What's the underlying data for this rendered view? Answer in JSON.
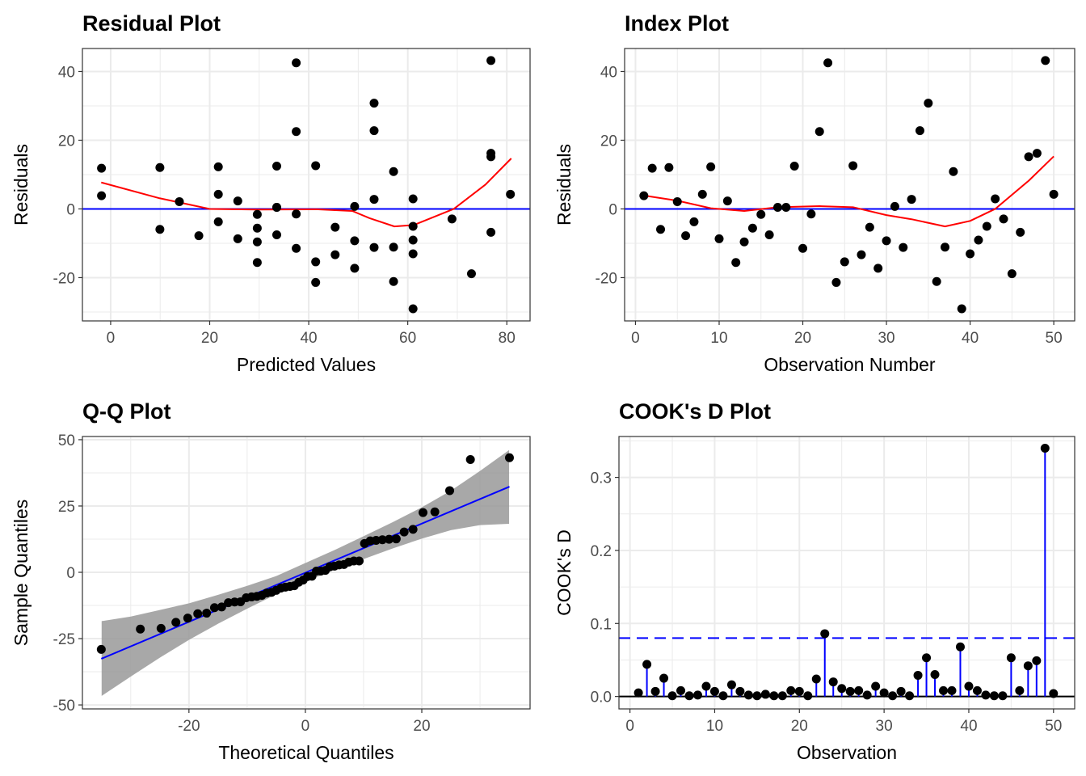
{
  "chart_data": [
    {
      "type": "scatter",
      "title": "Residual Plot",
      "xlabel": "Predicted Values",
      "ylabel": "Residuals",
      "xlim": [
        -5.7,
        84.7
      ],
      "ylim": [
        -32.6,
        46.7
      ],
      "xticks": [
        0,
        20,
        40,
        60,
        80
      ],
      "yticks": [
        -20,
        0,
        20,
        40
      ],
      "grid": true,
      "point_color": "#000000",
      "reference_line": {
        "y": 0,
        "color": "#0000ff"
      },
      "x": [
        -1.849,
        -1.849,
        9.947,
        9.947,
        13.88,
        17.812,
        21.744,
        21.744,
        21.744,
        25.677,
        25.677,
        29.609,
        29.609,
        29.609,
        29.609,
        33.541,
        33.541,
        33.541,
        33.541,
        37.474,
        37.474,
        37.474,
        37.474,
        41.406,
        41.406,
        41.406,
        45.338,
        45.338,
        49.271,
        49.271,
        49.271,
        53.203,
        53.203,
        53.203,
        53.203,
        57.135,
        57.135,
        57.135,
        61.068,
        61.068,
        61.068,
        61.068,
        61.068,
        68.932,
        72.865,
        76.797,
        76.797,
        76.797,
        76.797,
        80.73
      ],
      "y": [
        3.849,
        11.849,
        -5.947,
        12.053,
        2.12,
        -7.812,
        -3.744,
        4.256,
        12.256,
        -8.677,
        2.323,
        -15.609,
        -9.609,
        -5.609,
        -1.609,
        -7.541,
        0.459,
        0.459,
        12.459,
        -11.474,
        -1.474,
        22.526,
        42.526,
        -21.406,
        -15.406,
        12.594,
        -13.338,
        -5.338,
        -17.271,
        -9.271,
        0.729,
        -11.203,
        2.797,
        22.797,
        30.797,
        -21.135,
        -11.135,
        10.865,
        -29.068,
        -13.068,
        -9.068,
        -5.068,
        2.932,
        -2.932,
        -18.865,
        -6.797,
        15.203,
        16.203,
        43.203,
        4.27
      ],
      "smooth": {
        "color": "#ff0000",
        "x": [
          -1.9,
          9.9,
          20,
          29.6,
          41.5,
          48.8,
          52.3,
          57.3,
          61.2,
          69.3,
          75.7,
          80.9
        ],
        "y": [
          7.7,
          3.1,
          0,
          -0.2,
          -0.1,
          -0.6,
          -2.7,
          -5.1,
          -4.7,
          0,
          7.1,
          14.7
        ]
      }
    },
    {
      "type": "scatter",
      "title": "Index Plot",
      "xlabel": "Observation Number",
      "ylabel": "Residuals",
      "xlim": [
        -1.3,
        52.5
      ],
      "ylim": [
        -32.6,
        46.7
      ],
      "xticks": [
        0,
        10,
        20,
        30,
        40,
        50
      ],
      "yticks": [
        -20,
        0,
        20,
        40
      ],
      "grid": true,
      "point_color": "#000000",
      "reference_line": {
        "y": 0,
        "color": "#0000ff"
      },
      "x": [
        1,
        2,
        3,
        4,
        5,
        6,
        7,
        8,
        9,
        10,
        11,
        12,
        13,
        14,
        15,
        16,
        17,
        18,
        19,
        20,
        21,
        22,
        23,
        24,
        25,
        26,
        27,
        28,
        29,
        30,
        31,
        32,
        33,
        34,
        35,
        36,
        37,
        38,
        39,
        40,
        41,
        42,
        43,
        44,
        45,
        46,
        47,
        48,
        49,
        50
      ],
      "y": [
        3.849,
        11.849,
        -5.947,
        12.053,
        2.12,
        -7.812,
        -3.744,
        4.256,
        12.256,
        -8.677,
        2.323,
        -15.609,
        -9.609,
        -5.609,
        -1.609,
        -7.541,
        0.459,
        0.459,
        12.459,
        -11.474,
        -1.474,
        22.526,
        42.526,
        -21.406,
        -15.406,
        12.594,
        -13.338,
        -5.338,
        -17.271,
        -9.271,
        0.729,
        -11.203,
        2.797,
        22.797,
        30.797,
        -21.135,
        -11.135,
        10.865,
        -29.068,
        -13.068,
        -9.068,
        -5.068,
        2.932,
        -2.932,
        -18.865,
        -6.797,
        15.203,
        16.203,
        43.203,
        4.27
      ],
      "smooth": {
        "color": "#ff0000",
        "x": [
          1,
          5,
          9,
          13,
          17,
          22,
          26,
          30,
          33,
          37,
          40,
          43,
          47,
          50
        ],
        "y": [
          3.9,
          2.4,
          0.2,
          -0.6,
          0.5,
          0.8,
          0.5,
          -1.8,
          -3.0,
          -5.1,
          -3.5,
          0,
          8.2,
          15.3
        ]
      }
    },
    {
      "type": "scatter",
      "title": "Q-Q Plot",
      "xlabel": "Theoretical Quantiles",
      "ylabel": "Sample Quantiles",
      "xlim": [
        -38.3,
        38.6
      ],
      "ylim": [
        -51.5,
        51.2
      ],
      "xticks": [
        -20,
        0,
        20
      ],
      "yticks": [
        -50,
        -25,
        0,
        25,
        50
      ],
      "grid": true,
      "point_color": "#000000",
      "x": [
        -35.06,
        -28.35,
        -24.79,
        -22.24,
        -20.21,
        -18.49,
        -16.97,
        -15.61,
        -14.38,
        -13.23,
        -12.15,
        -11.14,
        -10.16,
        -9.24,
        -8.33,
        -7.47,
        -6.63,
        -5.8,
        -5.0,
        -4.2,
        -3.44,
        -2.65,
        -1.9,
        -1.13,
        -0.38,
        0.38,
        1.13,
        1.9,
        2.65,
        3.44,
        4.2,
        5.0,
        5.8,
        6.63,
        7.47,
        8.33,
        9.24,
        10.16,
        11.14,
        12.15,
        13.23,
        14.38,
        15.61,
        16.97,
        18.49,
        20.21,
        22.24,
        24.79,
        28.35,
        35.06
      ],
      "y": [
        -29.068,
        -21.406,
        -21.135,
        -18.865,
        -17.271,
        -15.609,
        -15.406,
        -13.338,
        -13.068,
        -11.474,
        -11.203,
        -11.135,
        -9.609,
        -9.271,
        -9.068,
        -8.677,
        -7.812,
        -7.541,
        -6.797,
        -5.947,
        -5.609,
        -5.338,
        -5.068,
        -3.744,
        -2.932,
        -1.609,
        -1.474,
        0.459,
        0.459,
        0.729,
        2.12,
        2.323,
        2.797,
        2.932,
        3.849,
        4.256,
        4.27,
        10.865,
        11.849,
        12.053,
        12.256,
        12.459,
        12.594,
        15.203,
        16.203,
        22.526,
        22.797,
        30.797,
        42.526,
        43.203
      ],
      "qq_line": {
        "color": "#0000ff",
        "x": [
          -35.06,
          35.06
        ],
        "y": [
          -32.6,
          32.3
        ]
      },
      "band": {
        "color": "#999999",
        "x": [
          -35,
          -30,
          -25,
          -20,
          -15,
          -10,
          -5,
          0,
          5,
          10,
          15,
          20,
          25,
          30,
          35
        ],
        "lower": [
          -46.6,
          -39.3,
          -32.2,
          -25.5,
          -19.4,
          -13.7,
          -8.3,
          -3.5,
          0.9,
          5.0,
          9.0,
          12.7,
          15.9,
          17.8,
          18.3
        ],
        "upper": [
          -18.4,
          -16.7,
          -14.2,
          -11.7,
          -8.5,
          -5.1,
          -1.4,
          3.5,
          8.4,
          13.6,
          18.9,
          24.5,
          30.8,
          38.2,
          46.1
        ]
      }
    },
    {
      "type": "bar",
      "title": "COOK's D Plot",
      "xlabel": "Observation",
      "ylabel": "COOK's D",
      "xlim": [
        -1.3,
        52.5
      ],
      "ylim": [
        -0.017,
        0.356
      ],
      "xticks": [
        0,
        10,
        20,
        30,
        40,
        50
      ],
      "yticks": [
        0.0,
        0.1,
        0.2,
        0.3
      ],
      "ytick_labels": [
        "0.0",
        "0.1",
        "0.2",
        "0.3"
      ],
      "grid": true,
      "stem_color": "#0000ff",
      "point_color": "#000000",
      "threshold": {
        "y": 0.08,
        "color": "#0000ff",
        "style": "dashed"
      },
      "x": [
        1,
        2,
        3,
        4,
        5,
        6,
        7,
        8,
        9,
        10,
        11,
        12,
        13,
        14,
        15,
        16,
        17,
        18,
        19,
        20,
        21,
        22,
        23,
        24,
        25,
        26,
        27,
        28,
        29,
        30,
        31,
        32,
        33,
        34,
        35,
        36,
        37,
        38,
        39,
        40,
        41,
        42,
        43,
        44,
        45,
        46,
        47,
        48,
        49,
        50
      ],
      "y": [
        0.005,
        0.044,
        0.007,
        0.025,
        0.001,
        0.008,
        0.001,
        0.002,
        0.014,
        0.007,
        0.001,
        0.016,
        0.007,
        0.002,
        0.001,
        0.003,
        0.001,
        0.001,
        0.008,
        0.007,
        0.001,
        0.024,
        0.086,
        0.02,
        0.011,
        0.007,
        0.008,
        0.002,
        0.014,
        0.005,
        0.001,
        0.007,
        0.001,
        0.029,
        0.053,
        0.03,
        0.008,
        0.008,
        0.068,
        0.014,
        0.008,
        0.002,
        0.001,
        0.001,
        0.053,
        0.008,
        0.042,
        0.049,
        0.34,
        0.004
      ]
    }
  ]
}
